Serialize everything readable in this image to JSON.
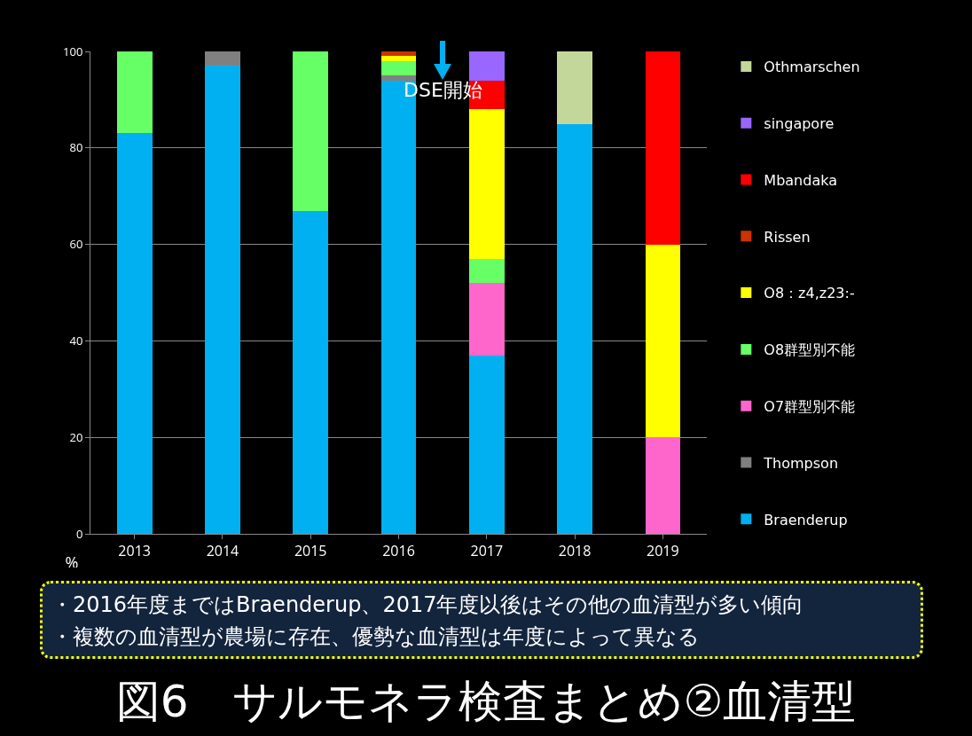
{
  "chart_data": {
    "type": "bar",
    "title": "図6　サルモネラ検査まとめ②血清型",
    "ylabel": "%",
    "categories": [
      "2013",
      "2014",
      "2015",
      "2016",
      "2017",
      "2018",
      "2019"
    ],
    "stacked": true,
    "ylim": [
      0,
      100
    ],
    "yticks": [
      0,
      20,
      40,
      60,
      80,
      100
    ],
    "grid": "y",
    "legend": "right",
    "series": [
      {
        "name": "Braenderup",
        "color": "#00b0f0",
        "values": [
          83,
          97,
          67,
          94,
          37,
          85,
          null
        ]
      },
      {
        "name": "Thompson",
        "color": "#808080",
        "values": [
          null,
          3,
          null,
          1,
          null,
          null,
          null
        ]
      },
      {
        "name": "O7群型別不能",
        "color": "#ff66cc",
        "values": [
          null,
          null,
          null,
          null,
          15,
          null,
          20
        ]
      },
      {
        "name": "O8群型別不能",
        "color": "#66ff66",
        "values": [
          17,
          null,
          33,
          3,
          5,
          null,
          null
        ]
      },
      {
        "name": "O8：z4,z23:-",
        "color": "#ffff00",
        "values": [
          null,
          null,
          null,
          1,
          31,
          null,
          40
        ]
      },
      {
        "name": "Rissen",
        "color": "#cc3300",
        "values": [
          null,
          null,
          null,
          1,
          null,
          null,
          null
        ]
      },
      {
        "name": "Mbandaka",
        "color": "#ff0000",
        "values": [
          null,
          null,
          null,
          null,
          6,
          null,
          40
        ]
      },
      {
        "name": "singapore",
        "color": "#9966ff",
        "values": [
          null,
          null,
          null,
          null,
          6,
          null,
          null
        ]
      },
      {
        "name": "Othmarschen",
        "color": "#c4d79b",
        "values": [
          null,
          null,
          null,
          null,
          null,
          15,
          null
        ]
      }
    ],
    "annotations": [
      "DSE開始",
      "・2016年度まではBraenderup、2017年度以後はその他の血清型が多い傾向",
      "・複数の血清型が農場に存在、優勢な血清型は年度によって異なる"
    ]
  }
}
